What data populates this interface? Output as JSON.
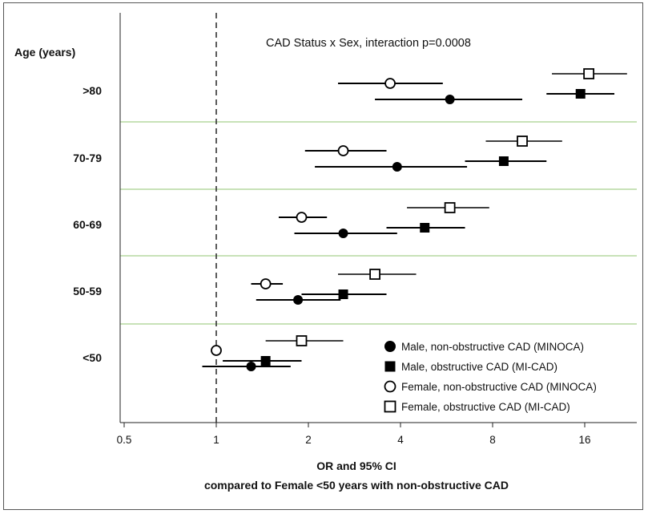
{
  "chart_data": {
    "type": "forest",
    "title": "CAD Status x Sex, interaction p=0.0008",
    "xlabel_line1": "OR and 95% CI",
    "xlabel_line2": "compared to Female <50 years with non-obstructive CAD",
    "ylabel": "Age (years)",
    "x_scale": "log2",
    "xlim": [
      0.5,
      24
    ],
    "x_ticks": [
      0.5,
      1,
      2,
      4,
      8,
      16
    ],
    "x_tick_labels": [
      "0.5",
      "1",
      "2",
      "4",
      "8",
      "16"
    ],
    "reference_line": 1,
    "categories": [
      ">80",
      "70-79",
      "60-69",
      "50-59",
      "<50"
    ],
    "series": [
      {
        "name": "Male, non-obstructive CAD (MINOCA)",
        "marker": "filled-circle",
        "points": [
          {
            "category": ">80",
            "or": 5.8,
            "low": 3.3,
            "high": 10.0
          },
          {
            "category": "70-79",
            "or": 3.9,
            "low": 2.1,
            "high": 6.6
          },
          {
            "category": "60-69",
            "or": 2.6,
            "low": 1.8,
            "high": 3.9
          },
          {
            "category": "50-59",
            "or": 1.85,
            "low": 1.35,
            "high": 2.55
          },
          {
            "category": "<50",
            "or": 1.3,
            "low": 0.9,
            "high": 1.75
          }
        ]
      },
      {
        "name": "Male, obstructive CAD (MI-CAD)",
        "marker": "filled-square",
        "points": [
          {
            "category": ">80",
            "or": 15.5,
            "low": 12.0,
            "high": 20.0
          },
          {
            "category": "70-79",
            "or": 8.7,
            "low": 6.5,
            "high": 12.0
          },
          {
            "category": "60-69",
            "or": 4.8,
            "low": 3.6,
            "high": 6.5
          },
          {
            "category": "50-59",
            "or": 2.6,
            "low": 1.9,
            "high": 3.6
          },
          {
            "category": "<50",
            "or": 1.45,
            "low": 1.05,
            "high": 1.9
          }
        ]
      },
      {
        "name": "Female, non-obstructive CAD (MINOCA)",
        "marker": "open-circle",
        "points": [
          {
            "category": ">80",
            "or": 3.7,
            "low": 2.5,
            "high": 5.5
          },
          {
            "category": "70-79",
            "or": 2.6,
            "low": 1.95,
            "high": 3.6
          },
          {
            "category": "60-69",
            "or": 1.9,
            "low": 1.6,
            "high": 2.3
          },
          {
            "category": "50-59",
            "or": 1.45,
            "low": 1.3,
            "high": 1.65
          },
          {
            "category": "<50",
            "or": 1.0,
            "low": null,
            "high": null
          }
        ]
      },
      {
        "name": "Female, obstructive CAD (MI-CAD)",
        "marker": "open-square",
        "points": [
          {
            "category": ">80",
            "or": 16.5,
            "low": 12.5,
            "high": 22.0
          },
          {
            "category": "70-79",
            "or": 10.0,
            "low": 7.6,
            "high": 13.5
          },
          {
            "category": "60-69",
            "or": 5.8,
            "low": 4.2,
            "high": 7.8
          },
          {
            "category": "50-59",
            "or": 3.3,
            "low": 2.5,
            "high": 4.5
          },
          {
            "category": "<50",
            "or": 1.9,
            "low": 1.45,
            "high": 2.6
          }
        ]
      }
    ],
    "legend_position": "bottom-right",
    "grid": false,
    "group_separator_color": "#a8d08d"
  }
}
